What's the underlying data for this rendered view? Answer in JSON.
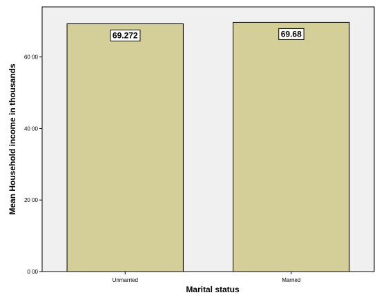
{
  "chart_data": {
    "type": "bar",
    "categories": [
      "Unmarried",
      "Married"
    ],
    "values": [
      69.272,
      69.68
    ],
    "data_labels": [
      "69.272",
      "69.68"
    ],
    "xlabel": "Marital status",
    "ylabel": "Mean Household income in thousands",
    "ylim": [
      0,
      74
    ],
    "yticks": [
      0,
      20,
      40,
      60
    ],
    "ytick_labels": [
      "0 00",
      "20 00",
      "40 00",
      "60 00"
    ],
    "grid": false,
    "legend": "none",
    "colors": {
      "bar_fill": "#d4cf98",
      "bar_stroke": "#000000",
      "plot_background": "#f0f0f0",
      "label_box": "#ffffff"
    }
  }
}
